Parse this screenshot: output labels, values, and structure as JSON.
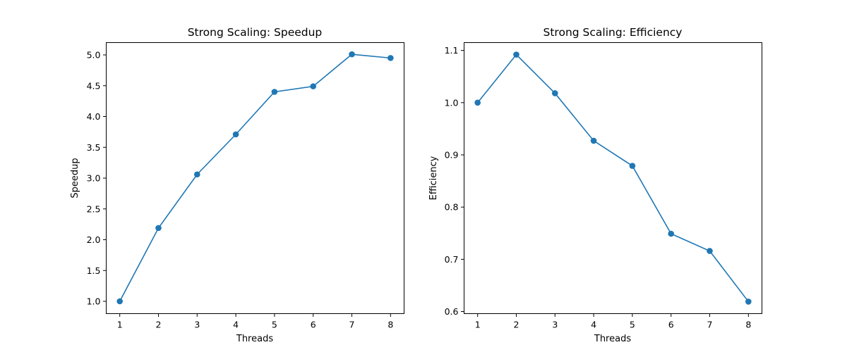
{
  "chart_data": [
    {
      "type": "line",
      "title": "Strong Scaling: Speedup",
      "xlabel": "Threads",
      "ylabel": "Speedup",
      "x": [
        1,
        2,
        3,
        4,
        5,
        6,
        7,
        8
      ],
      "series": [
        {
          "values": [
            1.0,
            2.19,
            3.06,
            3.71,
            4.4,
            4.49,
            5.01,
            4.95
          ],
          "color": "#1f77b4",
          "marker": "circle"
        }
      ],
      "xlim": [
        0.65,
        8.35
      ],
      "ylim": [
        0.8,
        5.2
      ],
      "xticks": [
        "1",
        "2",
        "3",
        "4",
        "5",
        "6",
        "7",
        "8"
      ],
      "yticks": [
        "1.0",
        "1.5",
        "2.0",
        "2.5",
        "3.0",
        "3.5",
        "4.0",
        "4.5",
        "5.0"
      ],
      "grid": false,
      "legend": "none"
    },
    {
      "type": "line",
      "title": "Strong Scaling: Efficiency",
      "xlabel": "Threads",
      "ylabel": "Efficiency",
      "x": [
        1,
        2,
        3,
        4,
        5,
        6,
        7,
        8
      ],
      "series": [
        {
          "values": [
            1.0,
            1.092,
            1.018,
            0.927,
            0.879,
            0.749,
            0.716,
            0.619
          ],
          "color": "#1f77b4",
          "marker": "circle"
        }
      ],
      "xlim": [
        0.65,
        8.35
      ],
      "ylim": [
        0.596,
        1.115
      ],
      "xticks": [
        "1",
        "2",
        "3",
        "4",
        "5",
        "6",
        "7",
        "8"
      ],
      "yticks": [
        "0.6",
        "0.7",
        "0.8",
        "0.9",
        "1.0",
        "1.1"
      ],
      "grid": false,
      "legend": "none"
    }
  ]
}
